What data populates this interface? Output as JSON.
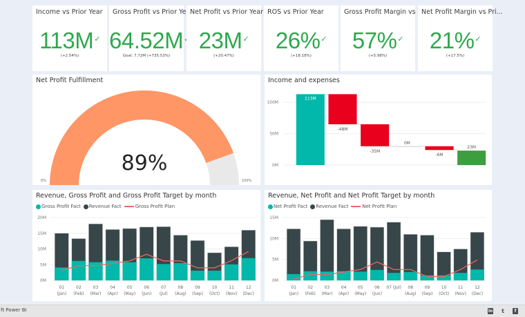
{
  "kpis": [
    {
      "title": "Income vs Prior Year",
      "value": "113M",
      "sub": "(+2.54%)"
    },
    {
      "title": "Gross Profit vs Prior Year",
      "value": "64.52M",
      "sub": "Goal: 7.72M (+735.53%)"
    },
    {
      "title": "Net Profit vs Prior Year",
      "value": "23M",
      "sub": "(+20.47%)"
    },
    {
      "title": "ROS vs Prior Year",
      "value": "26%",
      "sub": "(+18.18%)"
    },
    {
      "title": "Gross Profit Margin vs P...",
      "value": "57%",
      "sub": "(+5.98%)"
    },
    {
      "title": "Net Profit Margin vs Pri...",
      "value": "21%",
      "sub": "(+17.5%)"
    }
  ],
  "kpi_check_glyph": "✓",
  "gauge": {
    "title": "Net Profit Fulfillment",
    "value_label": "89%",
    "fraction": 0.89,
    "min_label": "0%",
    "max_label": "100%",
    "fill_color": "#fe9666",
    "track_color": "#e9e9e9"
  },
  "waterfall": {
    "title": "Income and expenses",
    "ylim": [
      0,
      120
    ],
    "yticks": [
      {
        "v": 0,
        "label": "0M"
      },
      {
        "v": 50,
        "label": "50M"
      },
      {
        "v": 100,
        "label": "100M"
      }
    ],
    "steps": [
      {
        "label": "113M",
        "delta": 113,
        "kind": "start",
        "color": "#01b8aa"
      },
      {
        "label": "-48M",
        "delta": -48,
        "kind": "decrease",
        "color": "#e8001c"
      },
      {
        "label": "-35M",
        "delta": -35,
        "kind": "decrease",
        "color": "#e8001c"
      },
      {
        "label": "0M",
        "delta": 0,
        "kind": "decrease",
        "color": "#e8001c"
      },
      {
        "label": "-6M",
        "delta": -6,
        "kind": "decrease",
        "color": "#e8001c"
      },
      {
        "label": "23M",
        "delta": 23,
        "kind": "total",
        "color": "#3d9e40"
      }
    ]
  },
  "chart_data": [
    {
      "type": "bar",
      "title": "Revenue, Gross Profit and Gross Profit Target by month",
      "legend": [
        {
          "name": "Gross Profit Fact",
          "kind": "dot",
          "color": "#01b8aa"
        },
        {
          "name": "Revenue Fact",
          "kind": "dot",
          "color": "#374649"
        },
        {
          "name": "Gross Profit Plan",
          "kind": "line",
          "color": "#f0665e"
        }
      ],
      "categories": [
        "01|(Jan)",
        "02|(Feb)",
        "03|(Mar)",
        "04|(Apr)",
        "05|(May)",
        "06|(Jun)",
        "07|(Jul)",
        "08|(Aug)",
        "09|(Sep)",
        "10|(Oct)",
        "11|(Nov)",
        "12|(Dec)"
      ],
      "ylim": [
        0,
        20
      ],
      "yticks": [
        {
          "v": 0,
          "label": "0M"
        },
        {
          "v": 5,
          "label": "5M"
        },
        {
          "v": 10,
          "label": "10M"
        },
        {
          "v": 15,
          "label": "15M"
        },
        {
          "v": 20,
          "label": "20M"
        }
      ],
      "series": [
        {
          "name": "Revenue Fact",
          "type": "bar",
          "color": "#374649",
          "values": [
            15.0,
            13.3,
            18.0,
            16.2,
            16.5,
            17.0,
            17.1,
            14.4,
            12.7,
            8.8,
            10.7,
            16.0
          ]
        },
        {
          "name": "Gross Profit Fact",
          "type": "bar",
          "color": "#01b8aa",
          "values": [
            4.1,
            6.2,
            5.8,
            6.3,
            5.8,
            7.0,
            5.2,
            5.5,
            3.1,
            3.1,
            5.1,
            7.1
          ]
        },
        {
          "name": "Gross Profit Plan",
          "type": "line",
          "color": "#f0665e",
          "values": [
            3.2,
            4.7,
            4.7,
            5.4,
            6.2,
            8.3,
            6.2,
            6.2,
            4.0,
            4.0,
            6.3,
            9.2
          ]
        }
      ],
      "grid": true,
      "legend_position": "top-left"
    },
    {
      "type": "bar",
      "title": "Revenue, Net Profit and Net Profit Target by month",
      "legend": [
        {
          "name": "Net Profit Fact",
          "kind": "dot",
          "color": "#01b8aa"
        },
        {
          "name": "Revenue Fact",
          "kind": "dot",
          "color": "#374649"
        },
        {
          "name": "Net Profit Plan",
          "kind": "line",
          "color": "#f0665e"
        }
      ],
      "categories": [
        "01|(Jan)",
        "02|(Feb)",
        "03|(Mar)",
        "04|(Apr)",
        "05|(May)",
        "06|(Jun)",
        "07 (Jul)|",
        "08|(Aug)",
        "09|(Sep)",
        "10|(Oct)",
        "11|(Nov)",
        "12|(Dec)"
      ],
      "ylim": [
        0,
        15
      ],
      "yticks": [
        {
          "v": 0,
          "label": "0M"
        },
        {
          "v": 5,
          "label": "5M"
        },
        {
          "v": 10,
          "label": "10M"
        },
        {
          "v": 15,
          "label": "15M"
        }
      ],
      "series": [
        {
          "name": "Revenue Fact",
          "type": "bar",
          "color": "#374649",
          "values": [
            12.3,
            9.4,
            14.5,
            12.3,
            12.9,
            12.7,
            13.9,
            11.0,
            10.8,
            6.8,
            7.5,
            11.5
          ]
        },
        {
          "name": "Net Profit Fact",
          "type": "bar",
          "color": "#01b8aa",
          "values": [
            1.5,
            2.2,
            2.1,
            2.2,
            2.1,
            2.5,
            1.8,
            2.0,
            1.2,
            1.2,
            1.8,
            2.6
          ]
        },
        {
          "name": "Net Profit Plan",
          "type": "line",
          "color": "#f0665e",
          "values": [
            0.3,
            1.4,
            1.4,
            2.0,
            2.6,
            4.4,
            2.6,
            2.6,
            0.9,
            0.9,
            2.6,
            4.9
          ]
        }
      ],
      "grid": true,
      "legend_position": "top-left"
    }
  ],
  "footer": {
    "text": "ft Power BI",
    "social": [
      {
        "name": "linkedin-icon",
        "glyph": "in"
      },
      {
        "name": "twitter-icon",
        "glyph": "t"
      },
      {
        "name": "facebook-icon",
        "glyph": "f"
      }
    ]
  }
}
